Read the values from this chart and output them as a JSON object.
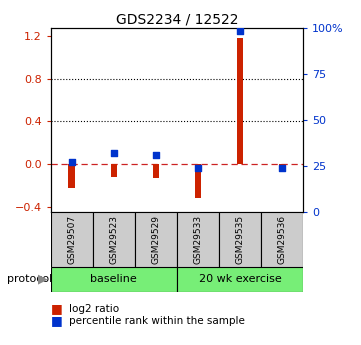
{
  "title": "GDS2234 / 12522",
  "samples": [
    "GSM29507",
    "GSM29523",
    "GSM29529",
    "GSM29533",
    "GSM29535",
    "GSM29536"
  ],
  "log2_ratio": [
    -0.22,
    -0.12,
    -0.13,
    -0.32,
    1.18,
    -0.04
  ],
  "percentile_rank": [
    27,
    32,
    31,
    24,
    98,
    24
  ],
  "ylim_left": [
    -0.45,
    1.28
  ],
  "ylim_right": [
    0,
    100
  ],
  "left_ticks": [
    -0.4,
    0.0,
    0.4,
    0.8,
    1.2
  ],
  "right_ticks": [
    0,
    25,
    50,
    75,
    100
  ],
  "red_color": "#cc2200",
  "blue_color": "#0033cc",
  "dashed_line_color": "#cc2222",
  "grid_color": "#000000",
  "bg_color": "#ffffff",
  "sample_bg": "#cccccc",
  "proto_color": "#77ee77",
  "protocol_label": "protocol",
  "baseline_label": "baseline",
  "exercise_label": "20 wk exercise"
}
